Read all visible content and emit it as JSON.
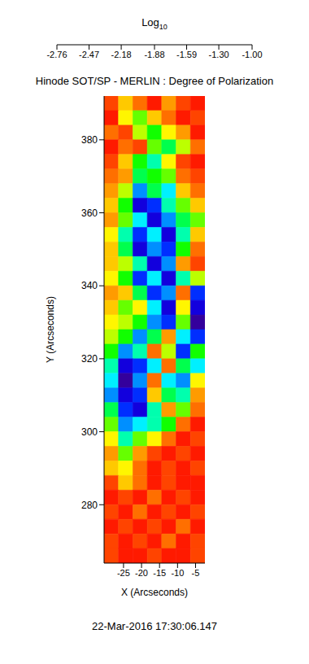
{
  "chart_data": {
    "type": "heatmap",
    "title": "Hinode SOT/SP - MERLIN : Degree of Polarization",
    "x_label": "X (Arcseconds)",
    "y_label": "Y (Arcseconds)",
    "annotation": "22-Mar-2016 17:30:06.147",
    "xlim": [
      -30.4,
      -2.4
    ],
    "xticks": [
      -25,
      -20,
      -15,
      -10,
      -5
    ],
    "ylim": [
      264,
      392
    ],
    "yticks": [
      280,
      300,
      320,
      340,
      360,
      380
    ],
    "x_edges": [
      -30.4,
      -26.4,
      -22.4,
      -18.4,
      -14.4,
      -10.4,
      -6.4,
      -2.4
    ],
    "y_edges": [
      392,
      388,
      384,
      380,
      376,
      372,
      368,
      364,
      360,
      356,
      352,
      348,
      344,
      340,
      336,
      332,
      328,
      324,
      320,
      316,
      312,
      308,
      304,
      300,
      296,
      292,
      288,
      284,
      280,
      276,
      272,
      268,
      264
    ],
    "cells": [
      [
        -2.6,
        -2.3,
        -2.5,
        -2.7,
        -2.4,
        -2.6,
        -2.7
      ],
      [
        -2.7,
        -2.2,
        -2.0,
        -2.3,
        -2.5,
        -2.7,
        -2.6
      ],
      [
        -2.5,
        -2.6,
        -2.1,
        -1.9,
        -2.2,
        -2.4,
        -2.7
      ],
      [
        -2.7,
        -2.5,
        -2.6,
        -2.0,
        -1.8,
        -2.1,
        -2.5
      ],
      [
        -2.6,
        -2.3,
        -1.9,
        -1.7,
        -2.2,
        -2.6,
        -2.7
      ],
      [
        -2.5,
        -2.4,
        -1.8,
        -1.9,
        -2.0,
        -2.5,
        -2.6
      ],
      [
        -2.4,
        -2.1,
        -1.5,
        -1.8,
        -1.6,
        -2.3,
        -2.5
      ],
      [
        -2.3,
        -1.9,
        -1.3,
        -1.4,
        -1.7,
        -2.0,
        -2.3
      ],
      [
        -2.4,
        -2.0,
        -1.6,
        -1.3,
        -1.5,
        -1.8,
        -2.0
      ],
      [
        -2.2,
        -1.7,
        -1.4,
        -1.6,
        -1.3,
        -1.7,
        -2.3
      ],
      [
        -2.3,
        -1.8,
        -1.3,
        -1.5,
        -1.4,
        -1.9,
        -2.5
      ],
      [
        -2.3,
        -2.1,
        -1.7,
        -1.3,
        -1.5,
        -2.4,
        -2.6
      ],
      [
        -2.2,
        -1.9,
        -1.4,
        -1.6,
        -1.3,
        -1.7,
        -2.1
      ],
      [
        -2.4,
        -2.3,
        -1.8,
        -1.4,
        -1.5,
        -2.5,
        -1.4
      ],
      [
        -2.3,
        -2.0,
        -2.2,
        -1.6,
        -1.3,
        -2.2,
        -1.3
      ],
      [
        -2.2,
        -2.1,
        -1.9,
        -1.5,
        -1.4,
        -2.0,
        -1.2
      ],
      [
        -2.1,
        -1.9,
        -1.5,
        -1.8,
        -2.4,
        -1.6,
        -1.4
      ],
      [
        -1.9,
        -1.5,
        -1.7,
        -2.5,
        -2.1,
        -1.4,
        -1.9
      ],
      [
        -1.7,
        -1.3,
        -1.4,
        -1.6,
        -2.5,
        -1.8,
        -1.6
      ],
      [
        -1.6,
        -1.2,
        -1.5,
        -2.5,
        -1.6,
        -1.5,
        -2.2
      ],
      [
        -1.5,
        -1.3,
        -1.4,
        -2.3,
        -1.8,
        -1.7,
        -2.4
      ],
      [
        -1.8,
        -1.4,
        -1.3,
        -1.7,
        -2.4,
        -2.0,
        -2.5
      ],
      [
        -2.0,
        -1.5,
        -1.6,
        -1.7,
        -1.9,
        -2.5,
        -2.7
      ],
      [
        -2.2,
        -1.7,
        -2.0,
        -2.2,
        -2.5,
        -2.7,
        -2.6
      ],
      [
        -2.4,
        -2.0,
        -2.4,
        -2.6,
        -2.7,
        -2.6,
        -2.7
      ],
      [
        -2.3,
        -2.2,
        -2.5,
        -2.7,
        -2.6,
        -2.7,
        -2.6
      ],
      [
        -2.6,
        -2.3,
        -2.5,
        -2.7,
        -2.6,
        -2.7,
        -2.7
      ],
      [
        -2.7,
        -2.6,
        -2.7,
        -2.5,
        -2.7,
        -2.6,
        -2.7
      ],
      [
        -2.6,
        -2.7,
        -2.5,
        -2.7,
        -2.6,
        -2.7,
        -2.6
      ],
      [
        -2.7,
        -2.6,
        -2.7,
        -2.6,
        -2.7,
        -2.5,
        -2.7
      ],
      [
        -2.6,
        -2.7,
        -2.6,
        -2.7,
        -2.5,
        -2.7,
        -2.6
      ],
      [
        -2.6,
        -2.7,
        -2.7,
        -2.6,
        -2.7,
        -2.7,
        -2.6
      ]
    ],
    "colorbar": {
      "label": "Log10",
      "range": [
        -2.76,
        -1.0
      ],
      "ticks": [
        -2.76,
        -2.47,
        -2.18,
        -1.88,
        -1.59,
        {
          "value": -1.3,
          "label": "-1.30"
        },
        {
          "value": -1.0,
          "label": "-1.00"
        }
      ]
    }
  }
}
